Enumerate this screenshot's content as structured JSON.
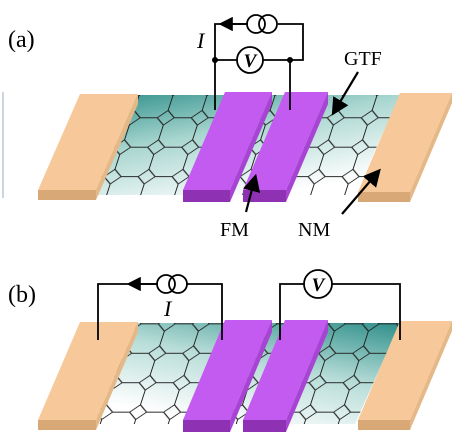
{
  "panels": [
    {
      "id": "a",
      "panel_label": "(a)",
      "current_label": "I",
      "voltmeter_symbol": "V",
      "labels": {
        "gtf": "GTF",
        "fm": "FM",
        "nm": "NM"
      }
    },
    {
      "id": "b",
      "panel_label": "(b)",
      "current_label": "I",
      "voltmeter_symbol": "V"
    }
  ],
  "colors": {
    "nm_electrode": "#f7c99a",
    "fm_electrode": "#c45bf0",
    "graphene_fill_dark": "#5aa8a0",
    "graphene_fill_light": "#ffffff",
    "hex_stroke": "#222222",
    "wire": "#000000"
  },
  "icons": [
    "current-source-icon",
    "voltmeter-icon",
    "arrow-icon"
  ]
}
